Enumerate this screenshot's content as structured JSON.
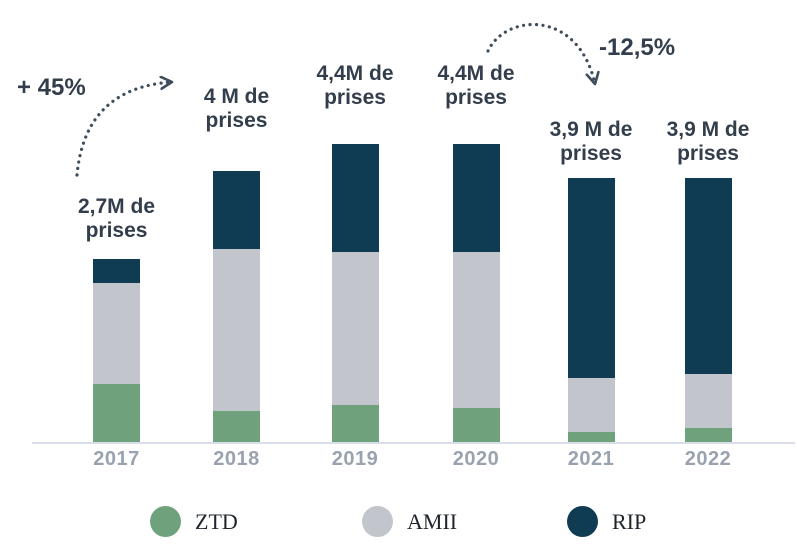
{
  "chart_data": {
    "type": "bar",
    "stacked": true,
    "categories": [
      "2017",
      "2018",
      "2019",
      "2020",
      "2021",
      "2022"
    ],
    "series": [
      {
        "name": "ZTD",
        "color": "#6FA27C",
        "values": [
          0.85,
          0.45,
          0.55,
          0.5,
          0.15,
          0.2
        ]
      },
      {
        "name": "AMII",
        "color": "#C2C5CC",
        "values": [
          1.5,
          2.4,
          2.25,
          2.3,
          0.8,
          0.8
        ]
      },
      {
        "name": "RIP",
        "color": "#0F3B53",
        "values": [
          0.35,
          1.15,
          1.6,
          1.6,
          2.95,
          2.9
        ]
      }
    ],
    "totals_millions": [
      2.7,
      4.0,
      4.4,
      4.4,
      3.9,
      3.9
    ],
    "unit": "M de prises",
    "bar_labels": [
      [
        "2,7M de",
        "prises"
      ],
      [
        "4 M de",
        "prises"
      ],
      [
        "4,4M de",
        "prises"
      ],
      [
        "4,4M de",
        "prises"
      ],
      [
        "3,9 M de",
        "prises"
      ],
      [
        "3,9 M de",
        "prises"
      ]
    ],
    "annotations": [
      {
        "text": "+ 45%",
        "from": "2017",
        "to": "2018"
      },
      {
        "text": "-12,5%",
        "from": "2020",
        "to": "2021"
      }
    ],
    "ylim": [
      0,
      4.7
    ],
    "grid": false,
    "legend_position": "bottom"
  },
  "legend": {
    "items": [
      {
        "label": "ZTD",
        "color": "#6FA27C"
      },
      {
        "label": "AMII",
        "color": "#C2C5CC"
      },
      {
        "label": "RIP",
        "color": "#0F3B53"
      }
    ]
  },
  "colors": {
    "ztd_green": "#6FA27C",
    "amii_gray": "#C2C5CC",
    "rip_navy": "#0F3B53",
    "axis_line": "#DADEE9",
    "label_text": "#333E4C",
    "year_text": "#99A2AF",
    "arrow": "#3E4D5B",
    "background": "#FFFFFF"
  }
}
